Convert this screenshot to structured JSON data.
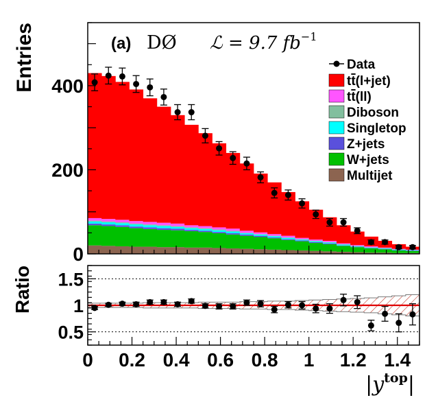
{
  "chart_data": [
    {
      "type": "area",
      "panel_label": "(a)",
      "experiment": "DØ",
      "lumi_text": "ℒ = 9.7 fb",
      "lumi_exp": "−1",
      "ylabel": "Entries",
      "xlim": [
        0,
        1.5
      ],
      "ylim": [
        0,
        550
      ],
      "y_ticks": [
        0,
        200,
        400
      ],
      "bin_edges": [
        0,
        0.0625,
        0.125,
        0.1875,
        0.25,
        0.3125,
        0.375,
        0.4375,
        0.5,
        0.5625,
        0.625,
        0.6875,
        0.75,
        0.8125,
        0.875,
        0.9375,
        1.0,
        1.0625,
        1.125,
        1.1875,
        1.25,
        1.3125,
        1.375,
        1.4375,
        1.5
      ],
      "stack_order": [
        "Multijet",
        "W+jets",
        "Z+jets",
        "Singletop",
        "Diboson",
        "tt(ll)",
        "tt(l+jet)"
      ],
      "series": [
        {
          "name": "Multijet",
          "legend": "Multijet",
          "color": "#8c6450",
          "values": [
            20,
            19,
            18,
            17,
            17,
            16,
            16,
            15,
            15,
            14,
            13,
            12,
            11,
            10,
            9,
            8,
            7,
            6,
            5,
            4,
            3,
            3,
            2,
            2
          ]
        },
        {
          "name": "W+jets",
          "legend": "W+jets",
          "color": "#00c000",
          "values": [
            48,
            47,
            46,
            44,
            42,
            41,
            40,
            39,
            37,
            35,
            33,
            31,
            29,
            27,
            24,
            22,
            19,
            17,
            14,
            12,
            10,
            8,
            6,
            5
          ]
        },
        {
          "name": "Z+jets",
          "legend": "Z+jets",
          "color": "#5a50dc",
          "values": [
            4,
            4,
            4,
            4,
            4,
            4,
            4,
            3,
            3,
            3,
            3,
            3,
            3,
            2,
            2,
            2,
            2,
            2,
            1,
            1,
            1,
            1,
            1,
            1
          ]
        },
        {
          "name": "Singletop",
          "legend": "Singletop",
          "color": "#00ffff",
          "values": [
            5,
            5,
            5,
            5,
            5,
            5,
            4,
            4,
            4,
            4,
            4,
            3,
            3,
            3,
            3,
            2,
            2,
            2,
            2,
            1,
            1,
            1,
            1,
            1
          ]
        },
        {
          "name": "Diboson",
          "legend": "Diboson",
          "color": "#82bf9e",
          "values": [
            2,
            2,
            2,
            2,
            2,
            2,
            2,
            2,
            2,
            2,
            2,
            1,
            1,
            1,
            1,
            1,
            1,
            1,
            1,
            1,
            1,
            1,
            1,
            0
          ]
        },
        {
          "name": "tt(ll)",
          "legend_pre": "t",
          "legend_bar": "t",
          "legend_post": "(ll)",
          "color": "#ff55ff",
          "values": [
            6,
            6,
            6,
            6,
            6,
            6,
            6,
            5,
            5,
            5,
            5,
            5,
            4,
            4,
            4,
            3,
            3,
            3,
            2,
            2,
            2,
            1,
            1,
            1
          ]
        },
        {
          "name": "tt(l+jet)",
          "legend_pre": "t",
          "legend_bar": "t",
          "legend_post": "(l+jet)",
          "color": "#ff0000",
          "values": [
            345,
            340,
            328,
            313,
            294,
            276,
            258,
            239,
            221,
            200,
            180,
            160,
            140,
            123,
            104,
            87,
            71,
            56,
            43,
            32,
            23,
            16,
            11,
            7
          ]
        }
      ],
      "data_points": {
        "name": "Data",
        "legend": "Data",
        "color": "#000000",
        "x": [
          0.03125,
          0.09375,
          0.15625,
          0.21875,
          0.28125,
          0.34375,
          0.40625,
          0.46875,
          0.53125,
          0.59375,
          0.65625,
          0.71875,
          0.78125,
          0.84375,
          0.90625,
          0.96875,
          1.03125,
          1.09375,
          1.15625,
          1.21875,
          1.28125,
          1.34375,
          1.40625,
          1.46875
        ],
        "y": [
          408,
          424,
          422,
          404,
          396,
          373,
          337,
          337,
          281,
          251,
          228,
          215,
          182,
          145,
          140,
          120,
          94,
          75,
          75,
          55,
          28,
          28,
          16,
          16
        ],
        "err": [
          20,
          20,
          20,
          20,
          20,
          19,
          18,
          18,
          17,
          16,
          15,
          15,
          13,
          12,
          12,
          11,
          10,
          9,
          9,
          7,
          5,
          5,
          4,
          4
        ]
      },
      "legend_position": "top-right"
    },
    {
      "type": "scatter",
      "ylabel": "Ratio",
      "xlabel": "|y",
      "xlabel_sup": "top",
      "xlabel_end": "|",
      "xlim": [
        0,
        1.5
      ],
      "ylim": [
        0.25,
        1.75
      ],
      "y_ticks": [
        "0.5",
        "1",
        "1.5"
      ],
      "x_ticks": [
        "0",
        "0.2",
        "0.4",
        "0.6",
        "0.8",
        "1",
        "1.2",
        "1.4"
      ],
      "x_tick_values": [
        0,
        0.2,
        0.4,
        0.6,
        0.8,
        1.0,
        1.2,
        1.4
      ],
      "reference_lines": [
        0.5,
        1.0,
        1.5
      ],
      "ratio": [
        0.95,
        1.01,
        1.03,
        1.02,
        1.06,
        1.06,
        1.02,
        1.08,
        0.99,
        0.98,
        0.98,
        1.05,
        1.03,
        0.92,
        1.01,
        1.0,
        0.94,
        0.94,
        1.1,
        1.06,
        0.62,
        0.84,
        0.67,
        0.83
      ],
      "ratio_err": [
        0.03,
        0.03,
        0.03,
        0.04,
        0.04,
        0.04,
        0.04,
        0.04,
        0.04,
        0.05,
        0.05,
        0.05,
        0.06,
        0.06,
        0.06,
        0.07,
        0.08,
        0.09,
        0.11,
        0.12,
        0.1,
        0.14,
        0.17,
        0.2
      ],
      "band_half_width": [
        0.04,
        0.04,
        0.04,
        0.04,
        0.05,
        0.05,
        0.05,
        0.05,
        0.06,
        0.06,
        0.06,
        0.07,
        0.07,
        0.08,
        0.08,
        0.09,
        0.1,
        0.11,
        0.12,
        0.13,
        0.14,
        0.16,
        0.18,
        0.2
      ]
    }
  ]
}
